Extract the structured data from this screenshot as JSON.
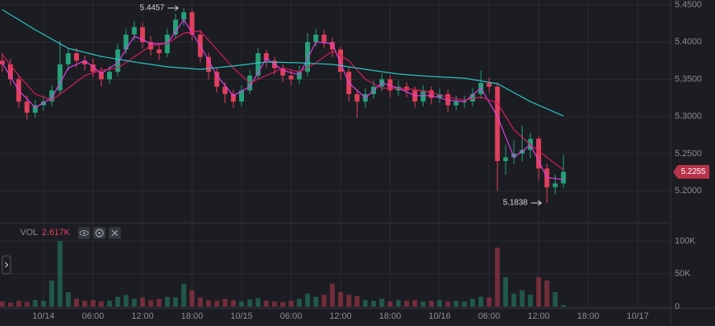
{
  "chart_data": {
    "type": "candlestick",
    "x": [
      -5,
      -4,
      -3,
      -2,
      -1,
      0,
      1,
      2,
      3,
      4,
      5,
      6,
      7,
      8,
      9,
      10,
      11,
      12,
      13,
      14,
      15,
      16,
      17,
      18,
      19,
      20,
      21,
      22,
      23,
      24,
      25,
      26,
      27,
      28,
      29,
      30,
      31,
      32,
      33,
      34,
      35,
      36,
      37,
      38,
      39,
      40,
      41,
      42,
      43,
      44,
      45,
      46,
      47,
      48,
      49,
      50,
      51,
      52,
      53,
      54,
      55,
      56,
      57,
      58,
      59,
      60,
      61,
      62,
      63
    ],
    "open": [
      5.375,
      5.37,
      5.35,
      5.32,
      5.305,
      5.315,
      5.32,
      5.335,
      5.37,
      5.385,
      5.375,
      5.37,
      5.36,
      5.35,
      5.36,
      5.39,
      5.41,
      5.42,
      5.4,
      5.39,
      5.385,
      5.41,
      5.43,
      5.44,
      5.41,
      5.38,
      5.36,
      5.34,
      5.33,
      5.32,
      5.335,
      5.355,
      5.385,
      5.375,
      5.365,
      5.355,
      5.35,
      5.36,
      5.4,
      5.41,
      5.4,
      5.39,
      5.36,
      5.33,
      5.32,
      5.33,
      5.34,
      5.35,
      5.335,
      5.34,
      5.335,
      5.32,
      5.335,
      5.325,
      5.33,
      5.315,
      5.32,
      5.32,
      5.33,
      5.345,
      5.34,
      5.24,
      5.245,
      5.25,
      5.255,
      5.27,
      5.23,
      5.205,
      5.21
    ],
    "high": [
      5.385,
      5.378,
      5.356,
      5.328,
      5.322,
      5.328,
      5.342,
      5.402,
      5.392,
      5.392,
      5.382,
      5.378,
      5.366,
      5.368,
      5.398,
      5.418,
      5.428,
      5.426,
      5.408,
      5.396,
      5.418,
      5.438,
      5.4457,
      5.444,
      5.416,
      5.386,
      5.366,
      5.346,
      5.336,
      5.342,
      5.362,
      5.392,
      5.39,
      5.38,
      5.37,
      5.362,
      5.368,
      5.412,
      5.418,
      5.416,
      5.406,
      5.394,
      5.366,
      5.336,
      5.338,
      5.348,
      5.358,
      5.356,
      5.348,
      5.346,
      5.34,
      5.342,
      5.34,
      5.338,
      5.336,
      5.328,
      5.328,
      5.338,
      5.362,
      5.352,
      5.346,
      5.262,
      5.268,
      5.288,
      5.278,
      5.274,
      5.236,
      5.222,
      5.248
    ],
    "low": [
      5.36,
      5.342,
      5.312,
      5.296,
      5.298,
      5.308,
      5.314,
      5.33,
      5.362,
      5.366,
      5.362,
      5.352,
      5.34,
      5.344,
      5.354,
      5.384,
      5.402,
      5.392,
      5.382,
      5.376,
      5.38,
      5.404,
      5.422,
      5.402,
      5.372,
      5.35,
      5.332,
      5.318,
      5.312,
      5.314,
      5.33,
      5.35,
      5.366,
      5.356,
      5.346,
      5.342,
      5.344,
      5.354,
      5.394,
      5.392,
      5.38,
      5.35,
      5.32,
      5.298,
      5.312,
      5.324,
      5.334,
      5.326,
      5.328,
      5.326,
      5.312,
      5.314,
      5.316,
      5.318,
      5.306,
      5.308,
      5.312,
      5.314,
      5.324,
      5.332,
      5.2,
      5.222,
      5.236,
      5.24,
      5.244,
      5.214,
      5.1838,
      5.196,
      5.204
    ],
    "close": [
      5.37,
      5.35,
      5.32,
      5.305,
      5.315,
      5.32,
      5.335,
      5.37,
      5.385,
      5.375,
      5.37,
      5.36,
      5.35,
      5.36,
      5.39,
      5.41,
      5.42,
      5.4,
      5.39,
      5.385,
      5.41,
      5.43,
      5.44,
      5.41,
      5.38,
      5.36,
      5.34,
      5.33,
      5.32,
      5.335,
      5.355,
      5.385,
      5.375,
      5.365,
      5.355,
      5.35,
      5.36,
      5.4,
      5.41,
      5.4,
      5.39,
      5.36,
      5.33,
      5.32,
      5.33,
      5.34,
      5.35,
      5.335,
      5.34,
      5.335,
      5.32,
      5.335,
      5.325,
      5.33,
      5.315,
      5.32,
      5.32,
      5.33,
      5.345,
      5.34,
      5.24,
      5.245,
      5.25,
      5.255,
      5.27,
      5.23,
      5.205,
      5.21,
      5.2255
    ],
    "colors": {
      "up": "#26a17a",
      "down": "#e0405c"
    },
    "lines": [
      {
        "color": "#e040e6",
        "x": [
          -5,
          -3,
          -1,
          1,
          3,
          5,
          7,
          9,
          11,
          13,
          15,
          17,
          19,
          21,
          23,
          25,
          27,
          29,
          31,
          33,
          35,
          37,
          39,
          41,
          43,
          45,
          47,
          49,
          51,
          53,
          55,
          57,
          59,
          61,
          63
        ],
        "values": [
          5.372,
          5.335,
          5.312,
          5.325,
          5.365,
          5.375,
          5.358,
          5.372,
          5.408,
          5.398,
          5.398,
          5.43,
          5.395,
          5.355,
          5.328,
          5.34,
          5.378,
          5.362,
          5.356,
          5.4,
          5.398,
          5.345,
          5.325,
          5.345,
          5.338,
          5.328,
          5.328,
          5.322,
          5.32,
          5.338,
          5.3,
          5.245,
          5.262,
          5.218,
          5.215
        ]
      },
      {
        "color": "#d81b60",
        "x": [
          -5,
          -3,
          -1,
          1,
          3,
          5,
          7,
          9,
          11,
          13,
          15,
          17,
          19,
          21,
          23,
          25,
          27,
          29,
          31,
          33,
          35,
          37,
          39,
          41,
          43,
          45,
          47,
          49,
          51,
          53,
          55,
          57,
          59,
          61,
          63
        ],
        "values": [
          5.383,
          5.355,
          5.33,
          5.322,
          5.338,
          5.355,
          5.362,
          5.365,
          5.38,
          5.395,
          5.398,
          5.412,
          5.415,
          5.39,
          5.365,
          5.345,
          5.355,
          5.365,
          5.36,
          5.372,
          5.388,
          5.375,
          5.35,
          5.338,
          5.338,
          5.336,
          5.332,
          5.326,
          5.322,
          5.326,
          5.318,
          5.282,
          5.262,
          5.245,
          5.228
        ]
      },
      {
        "color": "#26c6c6",
        "x": [
          -5,
          -1,
          3,
          7,
          11,
          15,
          19,
          23,
          27,
          31,
          35,
          39,
          43,
          47,
          51,
          55,
          59,
          63
        ],
        "values": [
          5.4435,
          5.4165,
          5.3916,
          5.3807,
          5.3732,
          5.3667,
          5.3634,
          5.3678,
          5.3732,
          5.3721,
          5.37,
          5.3634,
          5.357,
          5.3537,
          5.3515,
          5.344,
          5.32,
          5.3006
        ]
      }
    ],
    "xlim": [
      -5.27,
      76
    ],
    "xticks": [
      {
        "value": 0,
        "label": "10/14"
      },
      {
        "value": 6,
        "label": "06:00"
      },
      {
        "value": 12,
        "label": "12:00"
      },
      {
        "value": 18,
        "label": "18:00"
      },
      {
        "value": 24,
        "label": "10/15"
      },
      {
        "value": 30,
        "label": "06:00"
      },
      {
        "value": 36,
        "label": "12:00"
      },
      {
        "value": 42,
        "label": "18:00"
      },
      {
        "value": 48,
        "label": "10/16"
      },
      {
        "value": 54,
        "label": "06:00"
      },
      {
        "value": 60,
        "label": "12:00"
      },
      {
        "value": 66,
        "label": "18:00"
      },
      {
        "value": 72,
        "label": "10/17"
      }
    ],
    "ylim": [
      5.159,
      5.4565
    ],
    "yticks": [
      {
        "value": 5.2,
        "label": "5.2000"
      },
      {
        "value": 5.25,
        "label": "5.2500"
      },
      {
        "value": 5.3,
        "label": "5.3000"
      },
      {
        "value": 5.35,
        "label": "5.3500"
      },
      {
        "value": 5.4,
        "label": "5.4000"
      },
      {
        "value": 5.45,
        "label": "5.4500"
      }
    ],
    "grid": true,
    "high_marker": {
      "x": 17,
      "value": 5.4457
    },
    "low_marker": {
      "x": 61,
      "value": 5.1838
    },
    "last_price": 5.2255,
    "volume": {
      "label": "VOL",
      "current": {
        "value": 2617,
        "label": "2.617K"
      },
      "values": [
        8000,
        6000,
        9000,
        7000,
        10000,
        9000,
        40000,
        100000,
        22000,
        12000,
        9000,
        10000,
        8000,
        9000,
        15000,
        18000,
        12000,
        14000,
        10000,
        12000,
        15000,
        14000,
        35000,
        25000,
        14000,
        10000,
        9000,
        12000,
        10000,
        8000,
        11000,
        13000,
        9000,
        8000,
        7000,
        9000,
        12000,
        20000,
        15000,
        18000,
        35000,
        22000,
        18000,
        16000,
        10000,
        9000,
        12000,
        8000,
        10000,
        9000,
        10000,
        8000,
        9000,
        10000,
        8000,
        9000,
        8000,
        12000,
        15000,
        14000,
        90000,
        45000,
        20000,
        25000,
        18000,
        45000,
        40000,
        22000,
        2617
      ],
      "ylim": [
        0,
        124000
      ],
      "yticks": [
        0,
        {
          "value": 50000,
          "label": "50K"
        },
        {
          "value": 100000,
          "label": "100K"
        }
      ]
    }
  }
}
